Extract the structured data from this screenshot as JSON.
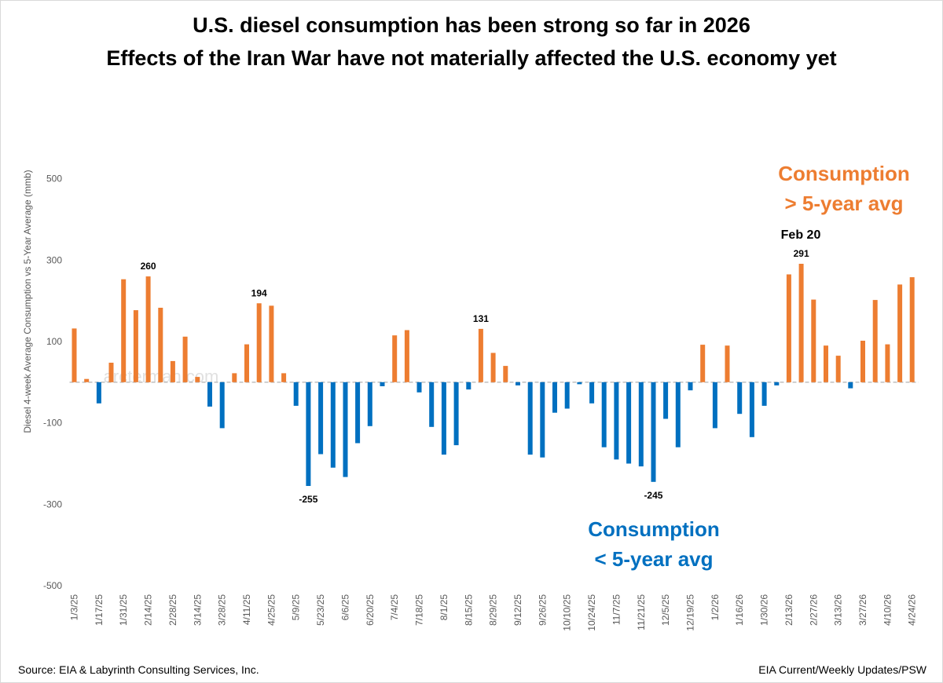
{
  "title": "U.S. diesel consumption has been strong so far in 2026",
  "subtitle": "Effects of the Iran War have not materially affected the U.S. economy yet",
  "source": "Source: EIA & Labyrinth Consulting Services, Inc.",
  "credit": "EIA Current/Weekly Updates/PSW",
  "watermark": "arcterman.com",
  "colors": {
    "positive": "#ED7D31",
    "negative": "#0070C0",
    "axis": "#595959",
    "zeroline": "#BFBFBF"
  },
  "chart_data": {
    "type": "bar",
    "ylabel": "Diesel 4-week Average Consumption vs 5-Year Average (mmb)",
    "ylim": [
      -500,
      700
    ],
    "yticks": [
      -500,
      -300,
      -100,
      100,
      300,
      500
    ],
    "x_tick_labels": [
      "1/3/25",
      "1/17/25",
      "1/31/25",
      "2/14/25",
      "2/28/25",
      "3/14/25",
      "3/28/25",
      "4/11/25",
      "4/25/25",
      "5/9/25",
      "5/23/25",
      "6/6/25",
      "6/20/25",
      "7/4/25",
      "7/18/25",
      "8/1/25",
      "8/15/25",
      "8/29/25",
      "9/12/25",
      "9/26/25",
      "10/10/25",
      "10/24/25",
      "11/7/25",
      "11/21/25",
      "12/5/25",
      "12/19/25",
      "1/2/26",
      "1/16/26",
      "1/30/26",
      "2/13/26",
      "2/27/26",
      "3/13/26",
      "3/27/26",
      "4/10/26",
      "4/24/26"
    ],
    "categories": [
      "1/3/25",
      "1/10/25",
      "1/17/25",
      "1/24/25",
      "1/31/25",
      "2/7/25",
      "2/14/25",
      "2/21/25",
      "2/28/25",
      "3/7/25",
      "3/14/25",
      "3/21/25",
      "3/28/25",
      "4/4/25",
      "4/11/25",
      "4/18/25",
      "4/25/25",
      "5/2/25",
      "5/9/25",
      "5/16/25",
      "5/23/25",
      "5/30/25",
      "6/6/25",
      "6/13/25",
      "6/20/25",
      "6/27/25",
      "7/4/25",
      "7/11/25",
      "7/18/25",
      "7/25/25",
      "8/1/25",
      "8/8/25",
      "8/15/25",
      "8/22/25",
      "8/29/25",
      "9/5/25",
      "9/12/25",
      "9/19/25",
      "9/26/25",
      "10/3/25",
      "10/10/25",
      "10/17/25",
      "10/24/25",
      "10/31/25",
      "11/7/25",
      "11/14/25",
      "11/21/25",
      "11/28/25",
      "12/5/25",
      "12/12/25",
      "12/19/25",
      "12/26/25",
      "1/2/26",
      "1/9/26",
      "1/16/26",
      "1/23/26",
      "1/30/26",
      "2/6/26",
      "2/13/26",
      "2/20/26",
      "2/27/26",
      "3/6/26",
      "3/13/26",
      "3/20/26",
      "3/27/26",
      "4/3/26",
      "4/10/26",
      "4/17/26",
      "4/24/26"
    ],
    "values": [
      132,
      8,
      -52,
      48,
      253,
      177,
      260,
      183,
      52,
      112,
      13,
      -60,
      -113,
      22,
      93,
      194,
      188,
      22,
      -58,
      -255,
      -177,
      -210,
      -233,
      -150,
      -108,
      -10,
      115,
      128,
      -25,
      -110,
      -178,
      -155,
      -18,
      131,
      72,
      40,
      -8,
      -178,
      -185,
      -75,
      -65,
      -5,
      -52,
      -160,
      -190,
      -200,
      -207,
      -245,
      -90,
      -160,
      -20,
      92,
      -113,
      90,
      -78,
      -135,
      -58,
      -8,
      265,
      291,
      203,
      90,
      65,
      -15,
      102,
      202,
      93,
      240,
      258
    ],
    "annotations": [
      {
        "index": 6,
        "text": "260"
      },
      {
        "index": 15,
        "text": "194"
      },
      {
        "index": 19,
        "text": "-255"
      },
      {
        "index": 33,
        "text": "131"
      },
      {
        "index": 47,
        "text": "-245"
      },
      {
        "index": 59,
        "text": "291"
      }
    ],
    "callouts": {
      "feb20": "Feb 20",
      "above_line1": "Consumption",
      "above_line2": "> 5-year avg",
      "below_line1": "Consumption",
      "below_line2": "< 5-year avg"
    }
  }
}
